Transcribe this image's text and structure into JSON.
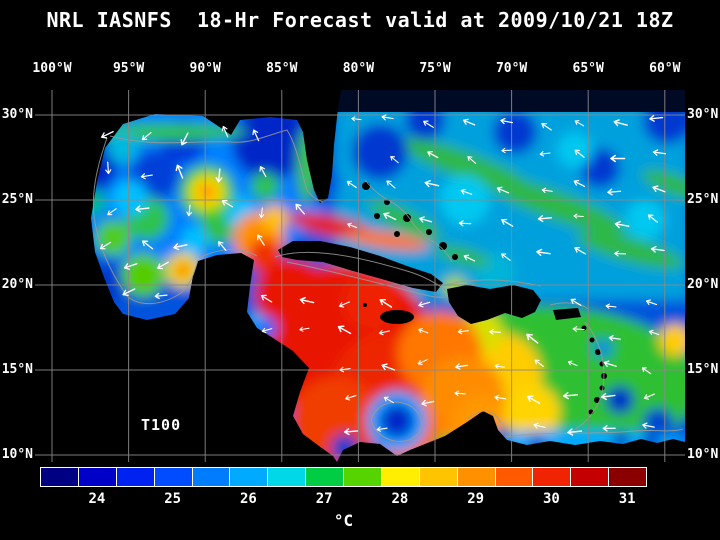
{
  "title": "NRL IASNFS  18-Hr Forecast valid at 2009/10/21 18Z",
  "map": {
    "field_label": "T100",
    "lon_ticks": [
      "100°W",
      "95°W",
      "90°W",
      "85°W",
      "80°W",
      "75°W",
      "70°W",
      "65°W",
      "60°W"
    ],
    "lat_ticks": [
      "30°N",
      "25°N",
      "20°N",
      "15°N",
      "10°N"
    ],
    "arrow_color": "#ffffff",
    "grid_color": "#8a8a8a",
    "land_color": "#000000",
    "contour_color": "#9b9b9b"
  },
  "colorbar": {
    "unit": "°C",
    "tick_labels": [
      "24",
      "25",
      "26",
      "27",
      "28",
      "29",
      "30",
      "31"
    ],
    "cell_colors": [
      "#000082",
      "#0000c8",
      "#0022f0",
      "#004cff",
      "#007dff",
      "#00aaff",
      "#00d8e8",
      "#00cc44",
      "#55d400",
      "#ffee00",
      "#ffc400",
      "#ff9000",
      "#ff5a00",
      "#f02400",
      "#c40000",
      "#8a0000"
    ]
  }
}
